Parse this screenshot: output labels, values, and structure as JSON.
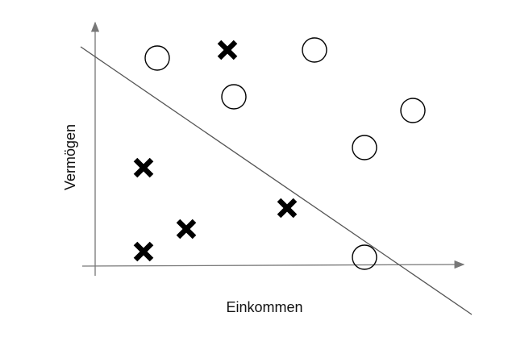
{
  "axes": {
    "x_label": "Einkommen",
    "y_label": "Vermögen"
  },
  "colors": {
    "axis": "#777777",
    "boundary": "#555555",
    "marker": "#000000",
    "background": "#ffffff"
  },
  "legend_classes": {
    "cross": "x-marker",
    "circle": "o-marker"
  }
}
